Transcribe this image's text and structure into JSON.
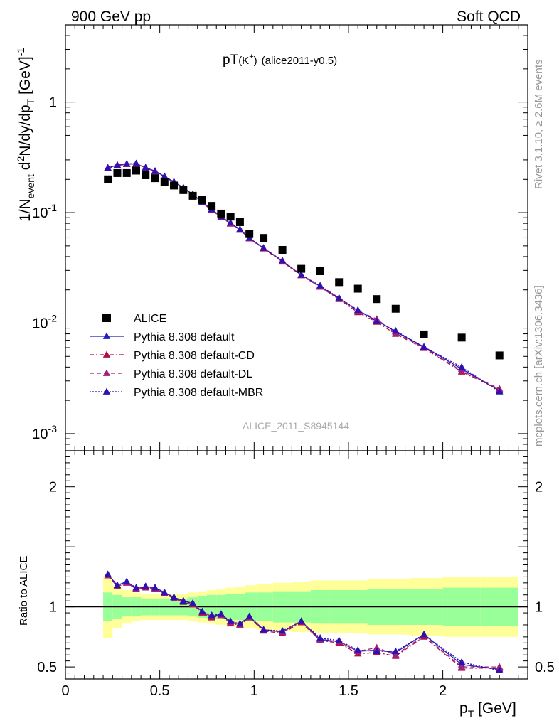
{
  "header": {
    "left": "900 GeV pp",
    "right": "Soft QCD"
  },
  "side_labels": {
    "rivet": "Rivet 3.1.10, ≥ 2.6M events",
    "mcplots": "mcplots.cern.ch [arXiv:1306.3436]"
  },
  "title": {
    "main": "pT",
    "particle": "(K",
    "charge": "+",
    "close": ")",
    "tag": "(alice2011-y0.5)"
  },
  "watermark": "ALICE_2011_S8945144",
  "y_label": {
    "p1": "1/N",
    "p1sub": "event",
    "p2": " d",
    "p2sup": "2",
    "p3": "N/dy/dp",
    "p3sub": "T",
    "p4": " [GeV]",
    "p4sup": "-1"
  },
  "ratio_label": "Ratio to ALICE",
  "x_label": {
    "main": "p",
    "sub": "T",
    "unit": " [GeV]"
  },
  "colors": {
    "data": "#000000",
    "default": "#1f1fbf",
    "cd": "#b0104a",
    "dl": "#a0207a",
    "mbr": "#3010b0",
    "band_inner": "#99ff99",
    "band_outer": "#ffff99"
  },
  "chart_data": {
    "type": "scatter",
    "xlabel": "pT [GeV]",
    "ylabel": "1/Nevent d2N/dy/dpT [GeV]-1",
    "xlim": [
      0,
      2.45
    ],
    "ylim_top": [
      0.0007,
      5
    ],
    "yscale_top": "log",
    "ylim_ratio": [
      0.4,
      2.3
    ],
    "top_ticks": [
      {
        "v": 0.001,
        "base": "10",
        "exp": "-3"
      },
      {
        "v": 0.01,
        "base": "10",
        "exp": "-2"
      },
      {
        "v": 0.1,
        "base": "10",
        "exp": "-1"
      },
      {
        "v": 1,
        "base": "1",
        "exp": ""
      }
    ],
    "x_ticks": [
      {
        "v": 0,
        "label": "0"
      },
      {
        "v": 0.5,
        "label": "0.5"
      },
      {
        "v": 1,
        "label": "1"
      },
      {
        "v": 1.5,
        "label": "1.5"
      },
      {
        "v": 2,
        "label": "2"
      }
    ],
    "ratio_ticks": [
      {
        "v": 0.5,
        "label": "0.5"
      },
      {
        "v": 1,
        "label": "1"
      },
      {
        "v": 2,
        "label": "2"
      }
    ],
    "x": [
      0.225,
      0.275,
      0.325,
      0.375,
      0.425,
      0.475,
      0.525,
      0.575,
      0.625,
      0.675,
      0.725,
      0.775,
      0.825,
      0.875,
      0.925,
      0.975,
      1.05,
      1.15,
      1.25,
      1.35,
      1.45,
      1.55,
      1.65,
      1.75,
      1.9,
      2.1,
      2.3
    ],
    "alice": [
      0.2,
      0.228,
      0.228,
      0.24,
      0.218,
      0.205,
      0.19,
      0.176,
      0.16,
      0.142,
      0.13,
      0.115,
      0.098,
      0.092,
      0.082,
      0.064,
      0.059,
      0.046,
      0.031,
      0.0295,
      0.0235,
      0.0205,
      0.0165,
      0.0135,
      0.0079,
      0.0074,
      0.0051
    ],
    "band_inner_frac": [
      0.12,
      0.1,
      0.08,
      0.08,
      0.07,
      0.07,
      0.07,
      0.07,
      0.07,
      0.08,
      0.09,
      0.1,
      0.1,
      0.11,
      0.11,
      0.12,
      0.12,
      0.13,
      0.13,
      0.14,
      0.14,
      0.14,
      0.15,
      0.15,
      0.15,
      0.16,
      0.16
    ],
    "band_outer_frac": [
      0.26,
      0.18,
      0.14,
      0.12,
      0.11,
      0.11,
      0.11,
      0.11,
      0.11,
      0.12,
      0.13,
      0.14,
      0.15,
      0.16,
      0.17,
      0.18,
      0.19,
      0.2,
      0.21,
      0.22,
      0.22,
      0.22,
      0.23,
      0.23,
      0.24,
      0.25,
      0.25
    ],
    "series": [
      {
        "name": "Pythia 8.308 default",
        "key": "default",
        "dash": "",
        "ratio": [
          1.27,
          1.18,
          1.21,
          1.15,
          1.17,
          1.16,
          1.12,
          1.08,
          1.05,
          1.03,
          0.96,
          0.92,
          0.94,
          0.87,
          0.86,
          0.92,
          0.81,
          0.79,
          0.88,
          0.73,
          0.71,
          0.63,
          0.64,
          0.62,
          0.77,
          0.52,
          0.48
        ]
      },
      {
        "name": "Pythia 8.308 default-CD",
        "key": "cd",
        "dash": "6,3,2,3",
        "ratio": [
          1.26,
          1.17,
          1.2,
          1.15,
          1.16,
          1.15,
          1.11,
          1.07,
          1.04,
          1.02,
          0.95,
          0.91,
          0.93,
          0.86,
          0.85,
          0.91,
          0.8,
          0.78,
          0.87,
          0.72,
          0.7,
          0.61,
          0.62,
          0.59,
          0.75,
          0.49,
          0.49
        ]
      },
      {
        "name": "Pythia 8.308 default-DL",
        "key": "dl",
        "dash": "6,4",
        "ratio": [
          1.26,
          1.17,
          1.2,
          1.15,
          1.17,
          1.15,
          1.11,
          1.07,
          1.05,
          1.03,
          0.96,
          0.92,
          0.93,
          0.87,
          0.85,
          0.91,
          0.81,
          0.79,
          0.88,
          0.72,
          0.71,
          0.63,
          0.66,
          0.6,
          0.76,
          0.5,
          0.5
        ]
      },
      {
        "name": "Pythia 8.308 default-MBR",
        "key": "mbr",
        "dash": "2,2",
        "ratio": [
          1.27,
          1.18,
          1.21,
          1.16,
          1.17,
          1.16,
          1.12,
          1.08,
          1.05,
          1.03,
          0.96,
          0.93,
          0.94,
          0.88,
          0.86,
          0.92,
          0.81,
          0.8,
          0.88,
          0.74,
          0.72,
          0.64,
          0.63,
          0.63,
          0.77,
          0.54,
          0.47
        ]
      }
    ],
    "legend": [
      {
        "name": "ALICE",
        "key": "data"
      },
      {
        "name": "Pythia 8.308 default",
        "key": "default"
      },
      {
        "name": "Pythia 8.308 default-CD",
        "key": "cd"
      },
      {
        "name": "Pythia 8.308 default-DL",
        "key": "dl"
      },
      {
        "name": "Pythia 8.308 default-MBR",
        "key": "mbr"
      }
    ],
    "legend_position": "lower-left"
  }
}
